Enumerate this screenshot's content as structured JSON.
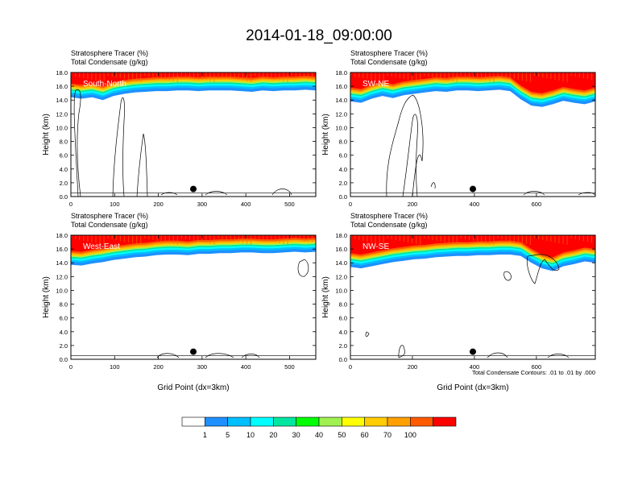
{
  "figure_title": "2014-01-18_09:00:00",
  "footnote": "Total Condensate Contours: .01 to .01 by .000",
  "colorbar": {
    "labels": [
      "1",
      "5",
      "10",
      "20",
      "30",
      "40",
      "50",
      "60",
      "70",
      "100"
    ],
    "colors": [
      "#ffffff",
      "#1e90ff",
      "#00bfff",
      "#00ffff",
      "#00e6a0",
      "#00ff00",
      "#a0f050",
      "#ffff00",
      "#ffcc00",
      "#ffa000",
      "#ff5a00",
      "#ff0000"
    ]
  },
  "chart_data": [
    {
      "type": "heatmap",
      "panel": "top-left",
      "label": "South-North",
      "subtitle_line1": "Stratosphere Tracer   (%)",
      "subtitle_line2": "Total Condensate   (g/kg)",
      "ylabel": "Height (km)",
      "xlabel": "",
      "ylim": [
        0,
        18
      ],
      "xlim": [
        0,
        560
      ],
      "xticks": [
        "0",
        "100",
        "200",
        "300",
        "400",
        "500"
      ],
      "yticks": [
        "0.0",
        "2.0",
        "4.0",
        "6.0",
        "8.0",
        "10.0",
        "12.0",
        "14.0",
        "16.0",
        "18.0"
      ],
      "tracer_base_km": [
        14.4,
        14.2,
        14.4,
        14.0,
        14.6,
        14.9,
        15.1,
        15.2,
        15.3,
        15.3,
        15.4,
        15.4,
        15.3,
        15.4,
        15.4,
        15.4,
        15.3,
        15.2,
        15.4,
        15.3,
        15.4,
        15.4,
        15.5,
        15.4
      ]
    },
    {
      "type": "heatmap",
      "panel": "top-right",
      "label": "SW-NE",
      "subtitle_line1": "Stratosphere Tracer   (%)",
      "subtitle_line2": "Total Condensate   (g/kg)",
      "ylabel": "Height (km)",
      "xlabel": "",
      "ylim": [
        0,
        18
      ],
      "xlim": [
        0,
        790
      ],
      "xticks": [
        "0",
        "200",
        "400",
        "600"
      ],
      "yticks": [
        "0.0",
        "2.0",
        "4.0",
        "6.0",
        "8.0",
        "10.0",
        "12.0",
        "14.0",
        "16.0",
        "18.0"
      ],
      "tracer_base_km": [
        13.8,
        13.6,
        14.2,
        14.6,
        14.3,
        14.7,
        14.9,
        15.1,
        15.3,
        15.2,
        15.4,
        15.4,
        15.3,
        15.4,
        15.5,
        15.3,
        14.1,
        13.2,
        13.0,
        13.4,
        13.9,
        13.6,
        13.4,
        13.8
      ]
    },
    {
      "type": "heatmap",
      "panel": "bottom-left",
      "label": "West-East",
      "subtitle_line1": "Stratosphere Tracer   (%)",
      "subtitle_line2": "Total Condensate   (g/kg)",
      "ylabel": "Height (km)",
      "xlabel": "Grid Point (dx=3km)",
      "ylim": [
        0,
        18
      ],
      "xlim": [
        0,
        560
      ],
      "xticks": [
        "0",
        "100",
        "200",
        "300",
        "400",
        "500"
      ],
      "yticks": [
        "0.0",
        "2.0",
        "4.0",
        "6.0",
        "8.0",
        "10.0",
        "12.0",
        "14.0",
        "16.0",
        "18.0"
      ],
      "tracer_base_km": [
        13.7,
        13.6,
        13.9,
        14.1,
        14.4,
        14.6,
        14.8,
        14.9,
        15.1,
        15.2,
        15.2,
        15.1,
        15.3,
        15.3,
        15.4,
        15.4,
        15.5,
        15.5,
        15.4,
        15.4,
        15.5,
        15.6,
        15.5,
        15.6
      ]
    },
    {
      "type": "heatmap",
      "panel": "bottom-right",
      "label": "NW-SE",
      "subtitle_line1": "Stratosphere Tracer   (%)",
      "subtitle_line2": "Total Condensate   (g/kg)",
      "ylabel": "Height (km)",
      "xlabel": "Grid Point (dx=3km)",
      "ylim": [
        0,
        18
      ],
      "xlim": [
        0,
        790
      ],
      "xticks": [
        "0",
        "200",
        "400",
        "600"
      ],
      "yticks": [
        "0.0",
        "2.0",
        "4.0",
        "6.0",
        "8.0",
        "10.0",
        "12.0",
        "14.0",
        "16.0",
        "18.0"
      ],
      "tracer_base_km": [
        13.4,
        13.2,
        13.5,
        13.8,
        14.1,
        14.3,
        14.5,
        14.6,
        14.8,
        14.9,
        15.0,
        15.0,
        15.1,
        15.1,
        15.2,
        15.2,
        15.0,
        14.0,
        13.2,
        12.8,
        13.5,
        13.8,
        14.2,
        14.0
      ]
    }
  ]
}
